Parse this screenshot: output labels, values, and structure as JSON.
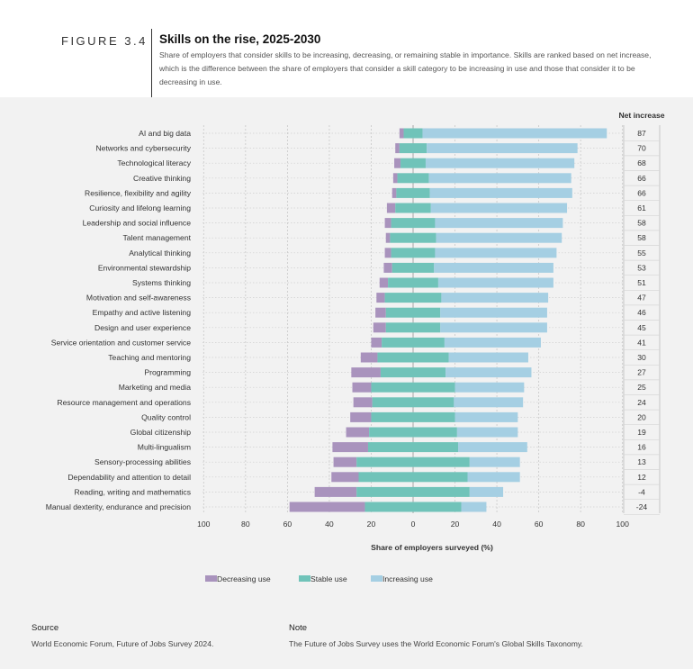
{
  "figure": {
    "label": "FIGURE 3.4",
    "title": "Skills on the rise, 2025-2030",
    "subtitle": "Share of employers that consider skills to be increasing, decreasing, or remaining stable in importance. Skills are ranked based on net increase, which is the difference between the share of employers that consider a skill category to be increasing in use and those that consider it to be decreasing in use."
  },
  "footer": {
    "source_heading": "Source",
    "source_text": "World Economic Forum, Future of Jobs Survey 2024.",
    "note_heading": "Note",
    "note_text": "The Future of Jobs Survey uses the World Economic Forum's Global Skills Taxonomy."
  },
  "chart_data": {
    "type": "bar",
    "orientation": "horizontal-diverging-stacked",
    "xlabel": "Share of employers surveyed (%)",
    "net_header": "Net increase",
    "xlim": [
      -100,
      100
    ],
    "ticks": [
      "100",
      "80",
      "60",
      "40",
      "20",
      "0",
      "20",
      "40",
      "60",
      "80",
      "100"
    ],
    "colors": {
      "decreasing": "#a993bd",
      "stable": "#70c3b9",
      "increasing": "#a5cfe3"
    },
    "legend": [
      "Decreasing use",
      "Stable use",
      "Increasing use"
    ],
    "categories": [
      "AI and big data",
      "Networks and cybersecurity",
      "Technological literacy",
      "Creative thinking",
      "Resilience, flexibility and agility",
      "Curiosity and lifelong learning",
      "Leadership and social influence",
      "Talent management",
      "Analytical thinking",
      "Environmental stewardship",
      "Systems thinking",
      "Motivation and self-awareness",
      "Empathy and active listening",
      "Design and user experience",
      "Service orientation and customer service",
      "Teaching and mentoring",
      "Programming",
      "Marketing and media",
      "Resource management and operations",
      "Quality control",
      "Global citizenship",
      "Multi-lingualism",
      "Sensory-processing abilities",
      "Dependability and attention to detail",
      "Reading, writing and mathematics",
      "Manual dexterity, endurance and precision"
    ],
    "series": [
      {
        "name": "Decreasing use",
        "values": [
          2,
          2,
          3,
          2,
          2,
          4,
          3,
          2,
          3,
          4,
          4,
          4,
          5,
          6,
          5,
          8,
          14,
          9,
          9,
          10,
          11,
          17,
          11,
          13,
          20,
          36
        ]
      },
      {
        "name": "Stable use",
        "values": [
          9,
          13,
          12,
          15,
          16,
          17,
          21,
          22,
          21,
          20,
          24,
          27,
          26,
          26,
          30,
          34,
          31,
          40,
          39,
          40,
          42,
          43,
          54,
          52,
          54,
          46
        ]
      },
      {
        "name": "Increasing use",
        "values": [
          88,
          72,
          71,
          68,
          68,
          65,
          61,
          60,
          58,
          57,
          55,
          51,
          51,
          51,
          46,
          38,
          41,
          33,
          33,
          30,
          29,
          33,
          24,
          25,
          16,
          12
        ]
      }
    ],
    "net_increase": [
      "87",
      "70",
      "68",
      "66",
      "66",
      "61",
      "58",
      "58",
      "55",
      "53",
      "51",
      "47",
      "46",
      "45",
      "41",
      "30",
      "27",
      "25",
      "24",
      "20",
      "19",
      "16",
      "13",
      "12",
      "-4",
      "-24"
    ]
  }
}
